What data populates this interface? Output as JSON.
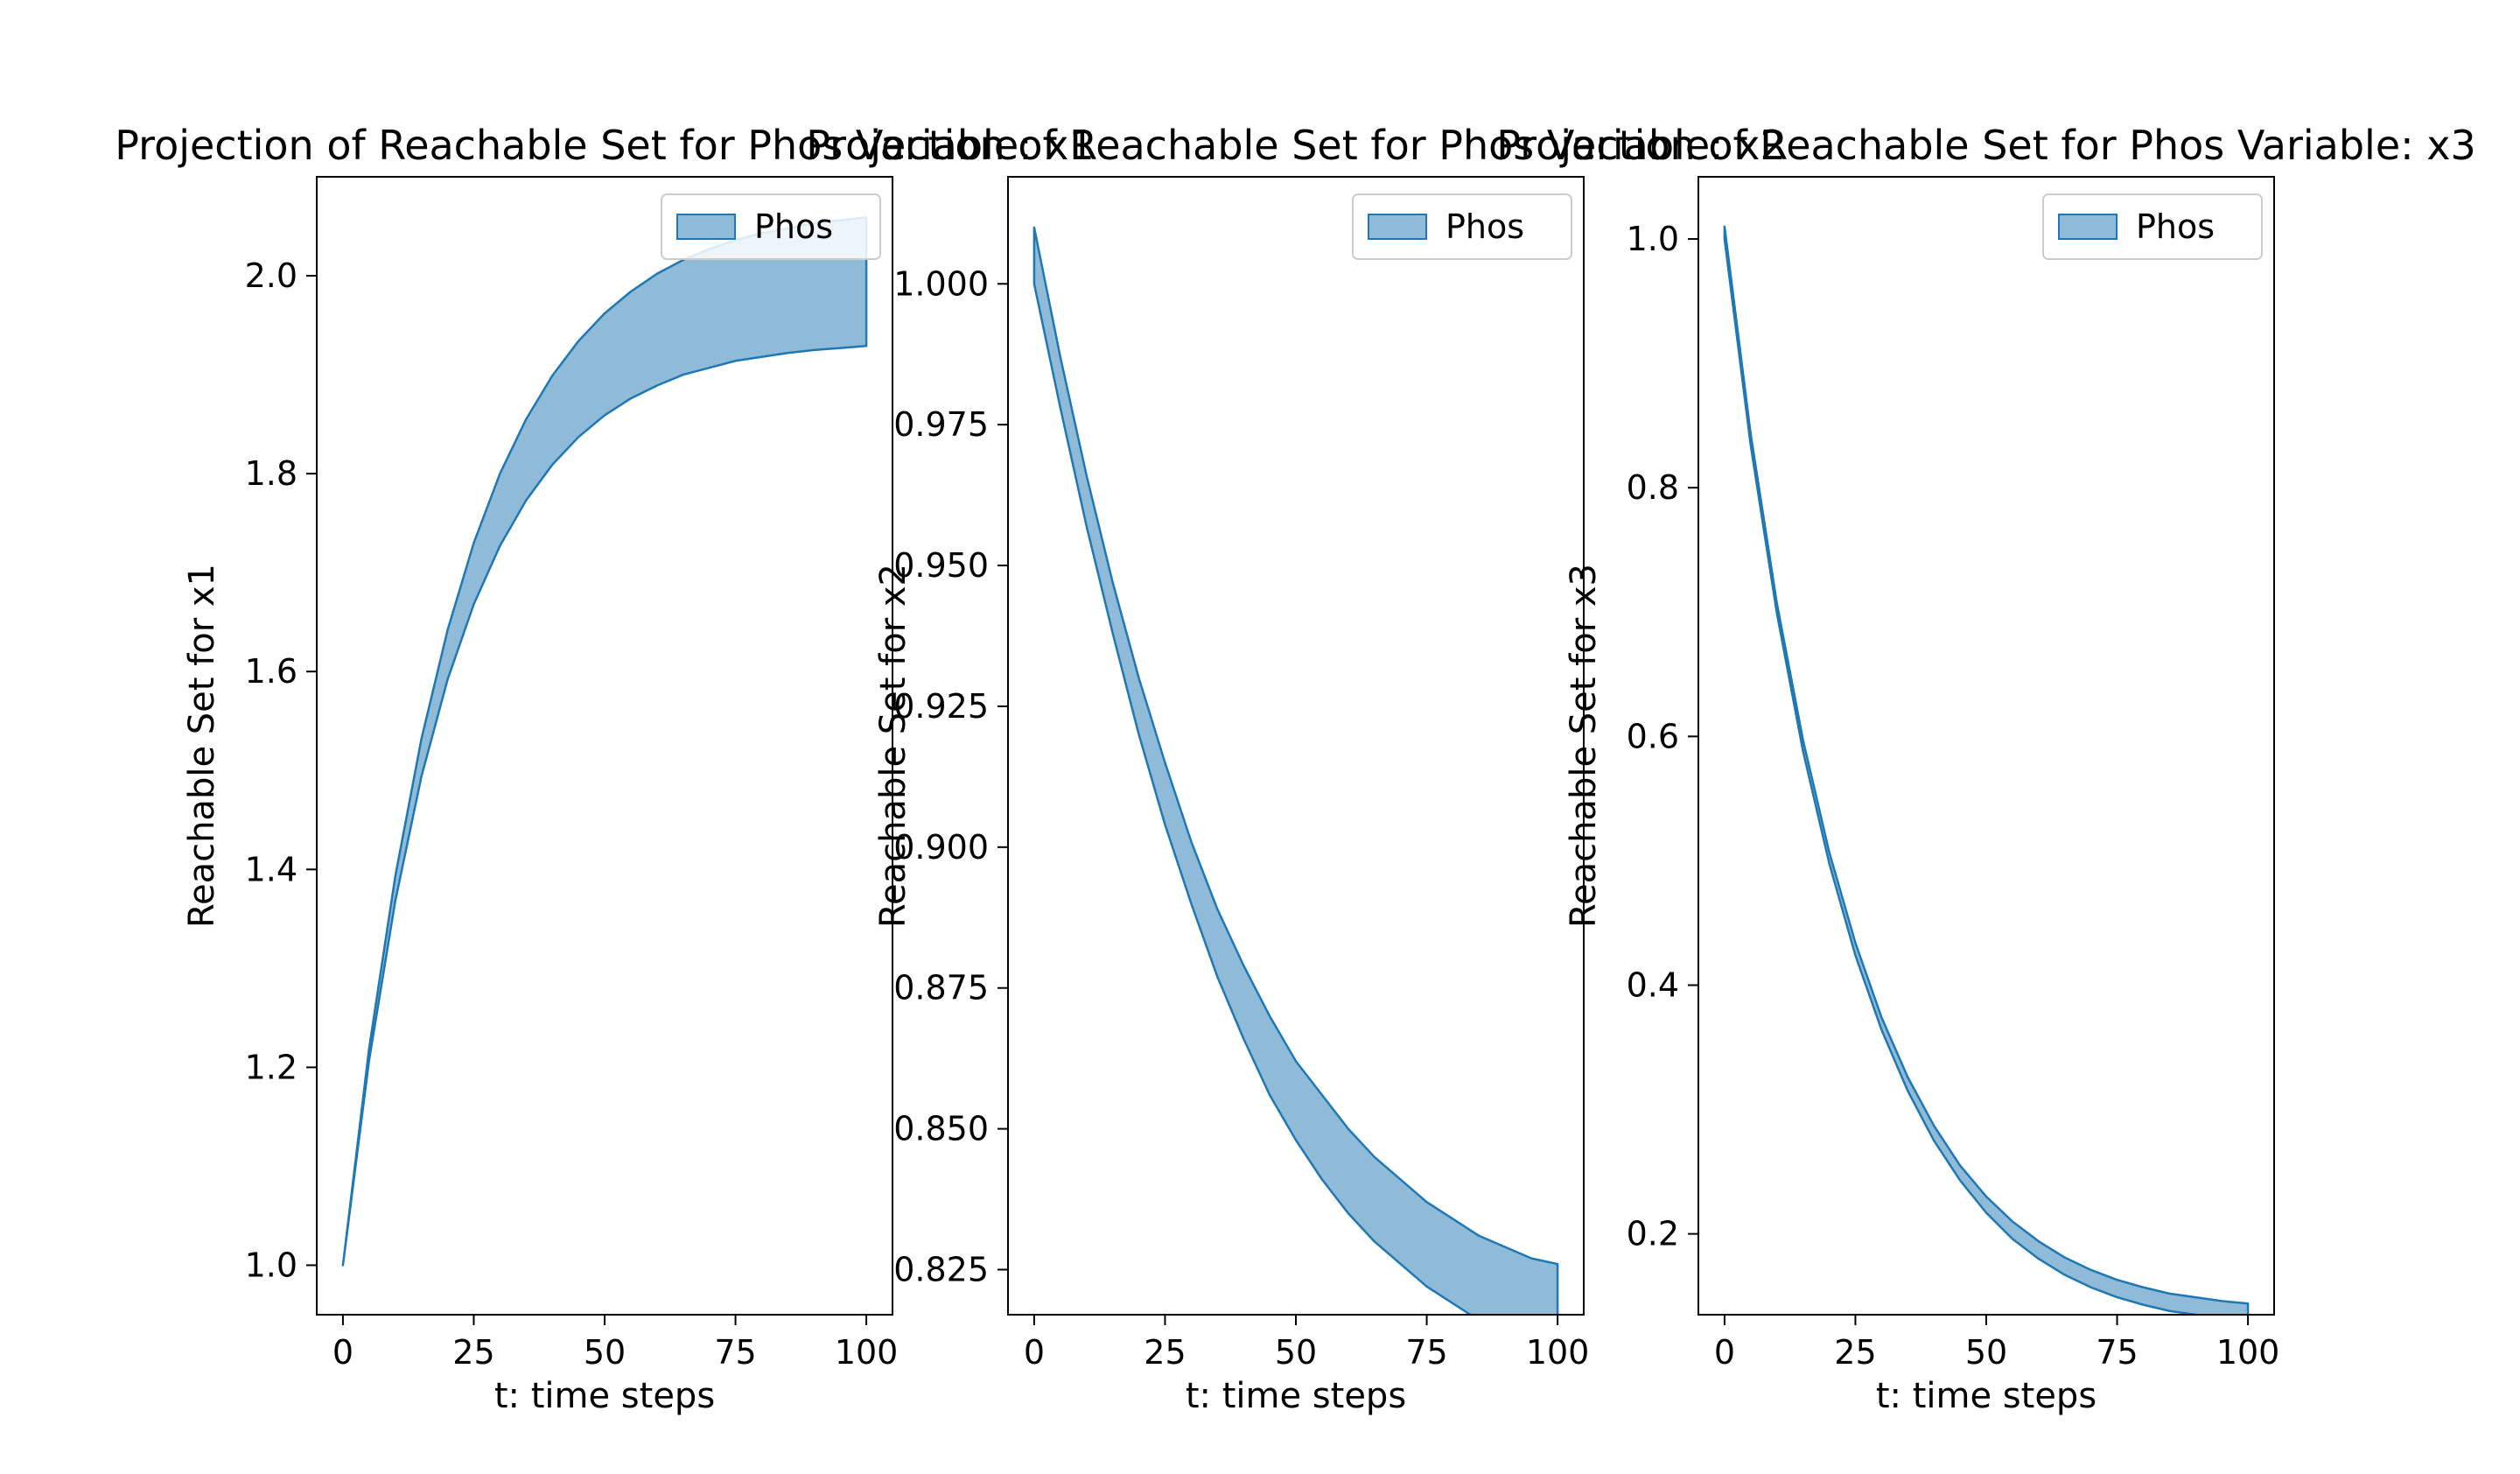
{
  "colors": {
    "band_fill": "#1f77b4",
    "band_fill_opacity": 0.5,
    "band_edge": "#1f77b4"
  },
  "chart_data": [
    {
      "type": "area",
      "title": "Projection of Reachable Set for Phos Variable: x1",
      "xlabel": "t: time steps",
      "ylabel": "Reachable Set for x1",
      "xlim": [
        -5,
        105
      ],
      "ylim": [
        0.95,
        2.1
      ],
      "xticks": [
        0,
        25,
        50,
        75,
        100
      ],
      "yticks": [
        1.0,
        1.2,
        1.4,
        1.6,
        1.8,
        2.0
      ],
      "ytick_labels": [
        "1.0",
        "1.2",
        "1.4",
        "1.6",
        "1.8",
        "2.0"
      ],
      "legend": [
        "Phos"
      ],
      "legend_position": "upper right",
      "grid": false,
      "series": [
        {
          "name": "Phos",
          "x": [
            0,
            5,
            10,
            15,
            20,
            25,
            30,
            35,
            40,
            45,
            50,
            55,
            60,
            65,
            70,
            75,
            80,
            85,
            90,
            95,
            100
          ],
          "lower": [
            1.0,
            1.207,
            1.368,
            1.494,
            1.592,
            1.668,
            1.727,
            1.773,
            1.809,
            1.837,
            1.859,
            1.876,
            1.889,
            1.9,
            1.907,
            1.914,
            1.918,
            1.922,
            1.925,
            1.927,
            1.929
          ],
          "upper": [
            1.0,
            1.219,
            1.393,
            1.532,
            1.642,
            1.73,
            1.8,
            1.855,
            1.899,
            1.934,
            1.962,
            1.984,
            2.002,
            2.016,
            2.027,
            2.036,
            2.043,
            2.048,
            2.053,
            2.056,
            2.059
          ]
        }
      ]
    },
    {
      "type": "area",
      "title": "Projection of Reachable Set for Phos Variable: x2",
      "xlabel": "t: time steps",
      "ylabel": "Reachable Set for x2",
      "xlim": [
        -5,
        105
      ],
      "ylim": [
        0.817,
        1.019
      ],
      "xticks": [
        0,
        25,
        50,
        75,
        100
      ],
      "yticks": [
        0.825,
        0.85,
        0.875,
        0.9,
        0.925,
        0.95,
        0.975,
        1.0
      ],
      "ytick_labels": [
        "0.825",
        "0.850",
        "0.875",
        "0.900",
        "0.925",
        "0.950",
        "0.975",
        "1.000"
      ],
      "legend": [
        "Phos"
      ],
      "legend_position": "upper right",
      "grid": false,
      "series": [
        {
          "name": "Phos",
          "x": [
            0,
            5,
            10,
            15,
            20,
            25,
            30,
            35,
            40,
            45,
            50,
            55,
            60,
            65,
            70,
            75,
            80,
            85,
            90,
            95,
            100
          ],
          "lower": [
            1.0,
            0.978,
            0.957,
            0.938,
            0.92,
            0.904,
            0.89,
            0.877,
            0.866,
            0.856,
            0.848,
            0.841,
            0.835,
            0.83,
            0.826,
            0.822,
            0.819,
            0.816,
            0.814,
            0.812,
            0.81
          ],
          "upper": [
            1.01,
            0.987,
            0.966,
            0.947,
            0.93,
            0.915,
            0.901,
            0.889,
            0.879,
            0.87,
            0.862,
            0.856,
            0.85,
            0.845,
            0.841,
            0.837,
            0.834,
            0.831,
            0.829,
            0.827,
            0.826
          ]
        }
      ]
    },
    {
      "type": "area",
      "title": "Projection of Reachable Set for Phos Variable: x3",
      "xlabel": "t: time steps",
      "ylabel": "Reachable Set for x3",
      "xlim": [
        -5,
        105
      ],
      "ylim": [
        0.135,
        1.05
      ],
      "xticks": [
        0,
        25,
        50,
        75,
        100
      ],
      "yticks": [
        0.2,
        0.4,
        0.6,
        0.8,
        1.0
      ],
      "ytick_labels": [
        "0.2",
        "0.4",
        "0.6",
        "0.8",
        "1.0"
      ],
      "legend": [
        "Phos"
      ],
      "legend_position": "upper right",
      "grid": false,
      "series": [
        {
          "name": "Phos",
          "x": [
            0,
            5,
            10,
            15,
            20,
            25,
            30,
            35,
            40,
            45,
            50,
            55,
            60,
            65,
            70,
            75,
            80,
            85,
            90,
            95,
            100
          ],
          "lower": [
            1.0,
            0.834,
            0.699,
            0.588,
            0.498,
            0.424,
            0.364,
            0.315,
            0.275,
            0.243,
            0.217,
            0.196,
            0.18,
            0.167,
            0.157,
            0.149,
            0.143,
            0.138,
            0.135,
            0.133,
            0.131
          ],
          "upper": [
            1.01,
            0.843,
            0.707,
            0.597,
            0.507,
            0.434,
            0.374,
            0.326,
            0.287,
            0.255,
            0.23,
            0.21,
            0.194,
            0.181,
            0.171,
            0.163,
            0.157,
            0.152,
            0.149,
            0.146,
            0.144
          ]
        }
      ]
    }
  ]
}
